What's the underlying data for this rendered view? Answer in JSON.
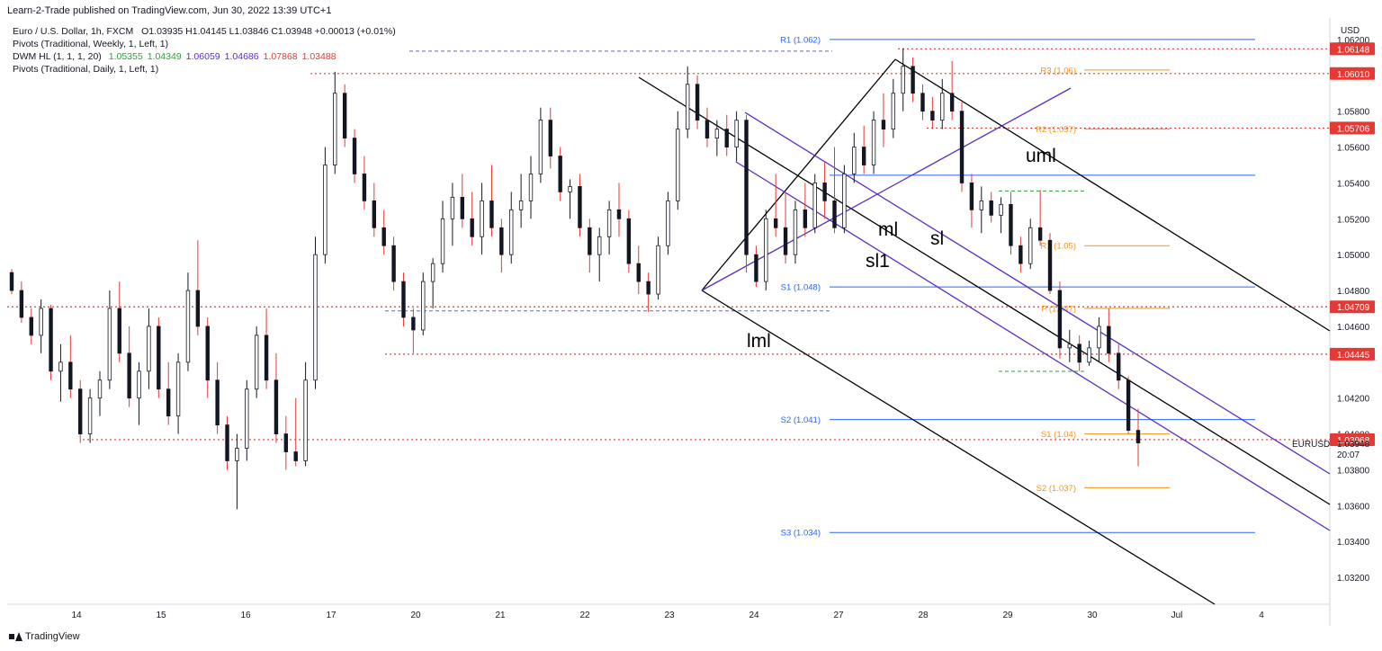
{
  "header": {
    "published": "Learn-2-Trade published on TradingView.com, Jun 30, 2022 13:39 UTC+1",
    "symbol": "Euro / U.S. Dollar, 1h, FXCM",
    "ohlc": "O1.03935 H1.04145 L1.03846 C1.03948 +0.00013 (+0.01%)",
    "indicator1": "Pivots (Traditional, Weekly, 1, Left, 1)",
    "indicator2_name": "DWM HL (1, 1, 1, 20)",
    "indicator2_values": [
      {
        "text": "1.05355",
        "color": "#2e9e3a"
      },
      {
        "text": "1.04349",
        "color": "#2e9e3a"
      },
      {
        "text": "1.06059",
        "color": "#5b2bc4"
      },
      {
        "text": "1.04686",
        "color": "#5b2bc4"
      },
      {
        "text": "1.07868",
        "color": "#e53935"
      },
      {
        "text": "1.03488",
        "color": "#e53935"
      }
    ],
    "indicator3": "Pivots (Traditional, Daily, 1, Left, 1)",
    "currency": "USD"
  },
  "brand": "TradingView",
  "chart_data": {
    "type": "candlestick",
    "symbol": "EURUSD",
    "currency": "USD",
    "ylim": [
      1.0305,
      1.0632
    ],
    "y_ticks": [
      "1.06200",
      "1.05800",
      "1.05600",
      "1.05400",
      "1.05200",
      "1.05000",
      "1.04800",
      "1.04600",
      "1.04200",
      "1.04000",
      "1.03800",
      "1.03600",
      "1.03400",
      "1.03200"
    ],
    "x_labels": [
      "14",
      "15",
      "16",
      "17",
      "20",
      "21",
      "22",
      "23",
      "24",
      "27",
      "28",
      "29",
      "30",
      "Jul",
      "4"
    ],
    "price_badges": [
      {
        "label": "1.06148",
        "value": 1.06148
      },
      {
        "label": "1.06010",
        "value": 1.0601
      },
      {
        "label": "1.05706",
        "value": 1.05706
      },
      {
        "label": "1.04709",
        "value": 1.04709
      },
      {
        "label": "1.04445",
        "value": 1.04445
      },
      {
        "label": "1.03968",
        "value": 1.03968
      }
    ],
    "current_price": {
      "symbol": "EURUSD",
      "value": "1.03948",
      "countdown": "20:07"
    },
    "weekly_pivots": [
      {
        "label": "R1 (1.062)",
        "value": 1.062
      },
      {
        "label": "S1 (1.048)",
        "value": 1.0482
      },
      {
        "label": "S2 (1.041)",
        "value": 1.0408
      },
      {
        "label": "S3 (1.034)",
        "value": 1.0345
      }
    ],
    "daily_pivots": [
      {
        "label": "R3 (1.06)",
        "value": 1.0603
      },
      {
        "label": "R2 (1.057)",
        "value": 1.057
      },
      {
        "label": "R1 (1.05)",
        "value": 1.0505
      },
      {
        "label": "P (1.047)",
        "value": 1.047
      },
      {
        "label": "S1 (1.04)",
        "value": 1.04
      },
      {
        "label": "S2 (1.037)",
        "value": 1.037
      }
    ],
    "pitchfork_labels": [
      "uml",
      "ml",
      "sl",
      "sl1",
      "lml"
    ],
    "colors": {
      "up": "#131722",
      "down": "#131722",
      "wick_up": "#131722",
      "wick_down": "#e53935",
      "weekly": "#2962ff",
      "daily": "#f7931a",
      "levels": "#e53935",
      "fork": "#000000",
      "sliding": "#5b2bc4"
    },
    "candles": [
      {
        "o": 1.049,
        "h": 1.0492,
        "l": 1.0478,
        "c": 1.048
      },
      {
        "o": 1.048,
        "h": 1.0485,
        "l": 1.0462,
        "c": 1.0465
      },
      {
        "o": 1.0465,
        "h": 1.047,
        "l": 1.045,
        "c": 1.0455
      },
      {
        "o": 1.0455,
        "h": 1.0475,
        "l": 1.0445,
        "c": 1.047
      },
      {
        "o": 1.047,
        "h": 1.0472,
        "l": 1.043,
        "c": 1.0435
      },
      {
        "o": 1.0435,
        "h": 1.045,
        "l": 1.0418,
        "c": 1.044
      },
      {
        "o": 1.044,
        "h": 1.0455,
        "l": 1.042,
        "c": 1.0425
      },
      {
        "o": 1.0425,
        "h": 1.043,
        "l": 1.0395,
        "c": 1.04
      },
      {
        "o": 1.04,
        "h": 1.0425,
        "l": 1.0395,
        "c": 1.042
      },
      {
        "o": 1.042,
        "h": 1.0435,
        "l": 1.041,
        "c": 1.043
      },
      {
        "o": 1.043,
        "h": 1.048,
        "l": 1.0425,
        "c": 1.047
      },
      {
        "o": 1.047,
        "h": 1.0485,
        "l": 1.044,
        "c": 1.0445
      },
      {
        "o": 1.0445,
        "h": 1.046,
        "l": 1.0415,
        "c": 1.042
      },
      {
        "o": 1.042,
        "h": 1.044,
        "l": 1.0405,
        "c": 1.0435
      },
      {
        "o": 1.0435,
        "h": 1.047,
        "l": 1.0425,
        "c": 1.046
      },
      {
        "o": 1.046,
        "h": 1.0465,
        "l": 1.042,
        "c": 1.0425
      },
      {
        "o": 1.0425,
        "h": 1.044,
        "l": 1.0405,
        "c": 1.041
      },
      {
        "o": 1.041,
        "h": 1.0445,
        "l": 1.04,
        "c": 1.044
      },
      {
        "o": 1.044,
        "h": 1.049,
        "l": 1.0435,
        "c": 1.048
      },
      {
        "o": 1.048,
        "h": 1.0508,
        "l": 1.0455,
        "c": 1.046
      },
      {
        "o": 1.046,
        "h": 1.0465,
        "l": 1.042,
        "c": 1.043
      },
      {
        "o": 1.043,
        "h": 1.044,
        "l": 1.04,
        "c": 1.0405
      },
      {
        "o": 1.0405,
        "h": 1.041,
        "l": 1.038,
        "c": 1.0385
      },
      {
        "o": 1.0385,
        "h": 1.04,
        "l": 1.0358,
        "c": 1.0392
      },
      {
        "o": 1.0392,
        "h": 1.043,
        "l": 1.0385,
        "c": 1.0425
      },
      {
        "o": 1.0425,
        "h": 1.046,
        "l": 1.042,
        "c": 1.0455
      },
      {
        "o": 1.0455,
        "h": 1.047,
        "l": 1.0425,
        "c": 1.043
      },
      {
        "o": 1.043,
        "h": 1.0445,
        "l": 1.0395,
        "c": 1.04
      },
      {
        "o": 1.04,
        "h": 1.041,
        "l": 1.038,
        "c": 1.039
      },
      {
        "o": 1.039,
        "h": 1.042,
        "l": 1.0382,
        "c": 1.0385
      },
      {
        "o": 1.0385,
        "h": 1.044,
        "l": 1.0382,
        "c": 1.043
      },
      {
        "o": 1.043,
        "h": 1.051,
        "l": 1.0425,
        "c": 1.05
      },
      {
        "o": 1.05,
        "h": 1.056,
        "l": 1.0495,
        "c": 1.055
      },
      {
        "o": 1.055,
        "h": 1.0602,
        "l": 1.0545,
        "c": 1.059
      },
      {
        "o": 1.059,
        "h": 1.0595,
        "l": 1.056,
        "c": 1.0565
      },
      {
        "o": 1.0565,
        "h": 1.057,
        "l": 1.054,
        "c": 1.0545
      },
      {
        "o": 1.0545,
        "h": 1.0555,
        "l": 1.0525,
        "c": 1.053
      },
      {
        "o": 1.053,
        "h": 1.054,
        "l": 1.051,
        "c": 1.0515
      },
      {
        "o": 1.0515,
        "h": 1.0525,
        "l": 1.05,
        "c": 1.0505
      },
      {
        "o": 1.0505,
        "h": 1.051,
        "l": 1.048,
        "c": 1.0485
      },
      {
        "o": 1.0485,
        "h": 1.049,
        "l": 1.046,
        "c": 1.0465
      },
      {
        "o": 1.0465,
        "h": 1.047,
        "l": 1.0445,
        "c": 1.0458
      },
      {
        "o": 1.0458,
        "h": 1.049,
        "l": 1.0455,
        "c": 1.0485
      },
      {
        "o": 1.0485,
        "h": 1.0498,
        "l": 1.047,
        "c": 1.0495
      },
      {
        "o": 1.0495,
        "h": 1.053,
        "l": 1.049,
        "c": 1.052
      },
      {
        "o": 1.052,
        "h": 1.054,
        "l": 1.0505,
        "c": 1.0532
      },
      {
        "o": 1.0532,
        "h": 1.0545,
        "l": 1.0515,
        "c": 1.052
      },
      {
        "o": 1.052,
        "h": 1.0535,
        "l": 1.0505,
        "c": 1.051
      },
      {
        "o": 1.051,
        "h": 1.054,
        "l": 1.05,
        "c": 1.053
      },
      {
        "o": 1.053,
        "h": 1.055,
        "l": 1.051,
        "c": 1.0515
      },
      {
        "o": 1.0515,
        "h": 1.052,
        "l": 1.049,
        "c": 1.05
      },
      {
        "o": 1.05,
        "h": 1.0535,
        "l": 1.0495,
        "c": 1.0525
      },
      {
        "o": 1.0525,
        "h": 1.0545,
        "l": 1.0515,
        "c": 1.053
      },
      {
        "o": 1.053,
        "h": 1.0555,
        "l": 1.052,
        "c": 1.0545
      },
      {
        "o": 1.0545,
        "h": 1.0582,
        "l": 1.054,
        "c": 1.0575
      },
      {
        "o": 1.0575,
        "h": 1.0582,
        "l": 1.0548,
        "c": 1.0555
      },
      {
        "o": 1.0555,
        "h": 1.056,
        "l": 1.053,
        "c": 1.0535
      },
      {
        "o": 1.0535,
        "h": 1.0542,
        "l": 1.052,
        "c": 1.0538
      },
      {
        "o": 1.0538,
        "h": 1.0545,
        "l": 1.051,
        "c": 1.0515
      },
      {
        "o": 1.0515,
        "h": 1.052,
        "l": 1.049,
        "c": 1.05
      },
      {
        "o": 1.05,
        "h": 1.0515,
        "l": 1.0485,
        "c": 1.051
      },
      {
        "o": 1.051,
        "h": 1.053,
        "l": 1.05,
        "c": 1.0525
      },
      {
        "o": 1.0525,
        "h": 1.054,
        "l": 1.051,
        "c": 1.052
      },
      {
        "o": 1.052,
        "h": 1.0525,
        "l": 1.049,
        "c": 1.0495
      },
      {
        "o": 1.0495,
        "h": 1.0505,
        "l": 1.0478,
        "c": 1.0485
      },
      {
        "o": 1.0485,
        "h": 1.049,
        "l": 1.0468,
        "c": 1.0478
      },
      {
        "o": 1.0478,
        "h": 1.051,
        "l": 1.0475,
        "c": 1.0505
      },
      {
        "o": 1.0505,
        "h": 1.0535,
        "l": 1.05,
        "c": 1.053
      },
      {
        "o": 1.053,
        "h": 1.058,
        "l": 1.0525,
        "c": 1.057
      },
      {
        "o": 1.057,
        "h": 1.0605,
        "l": 1.0565,
        "c": 1.0595
      },
      {
        "o": 1.0595,
        "h": 1.06,
        "l": 1.057,
        "c": 1.0575
      },
      {
        "o": 1.0575,
        "h": 1.0582,
        "l": 1.056,
        "c": 1.0565
      },
      {
        "o": 1.0565,
        "h": 1.0575,
        "l": 1.0555,
        "c": 1.057
      },
      {
        "o": 1.057,
        "h": 1.0578,
        "l": 1.0555,
        "c": 1.056
      },
      {
        "o": 1.056,
        "h": 1.058,
        "l": 1.0552,
        "c": 1.0575
      },
      {
        "o": 1.0575,
        "h": 1.0578,
        "l": 1.049,
        "c": 1.05
      },
      {
        "o": 1.05,
        "h": 1.0505,
        "l": 1.0482,
        "c": 1.0485
      },
      {
        "o": 1.0485,
        "h": 1.0525,
        "l": 1.048,
        "c": 1.052
      },
      {
        "o": 1.052,
        "h": 1.0545,
        "l": 1.051,
        "c": 1.0515
      },
      {
        "o": 1.0515,
        "h": 1.0535,
        "l": 1.0495,
        "c": 1.05
      },
      {
        "o": 1.05,
        "h": 1.053,
        "l": 1.0495,
        "c": 1.0525
      },
      {
        "o": 1.0525,
        "h": 1.054,
        "l": 1.051,
        "c": 1.0515
      },
      {
        "o": 1.0515,
        "h": 1.0545,
        "l": 1.0512,
        "c": 1.054
      },
      {
        "o": 1.054,
        "h": 1.0552,
        "l": 1.052,
        "c": 1.053
      },
      {
        "o": 1.053,
        "h": 1.056,
        "l": 1.0512,
        "c": 1.0515
      },
      {
        "o": 1.0515,
        "h": 1.055,
        "l": 1.0512,
        "c": 1.0545
      },
      {
        "o": 1.0545,
        "h": 1.0568,
        "l": 1.054,
        "c": 1.056
      },
      {
        "o": 1.056,
        "h": 1.0572,
        "l": 1.0545,
        "c": 1.055
      },
      {
        "o": 1.055,
        "h": 1.058,
        "l": 1.0545,
        "c": 1.0575
      },
      {
        "o": 1.0575,
        "h": 1.059,
        "l": 1.056,
        "c": 1.057
      },
      {
        "o": 1.057,
        "h": 1.0598,
        "l": 1.0565,
        "c": 1.059
      },
      {
        "o": 1.059,
        "h": 1.0615,
        "l": 1.058,
        "c": 1.0605
      },
      {
        "o": 1.0605,
        "h": 1.061,
        "l": 1.0585,
        "c": 1.059
      },
      {
        "o": 1.059,
        "h": 1.0595,
        "l": 1.0575,
        "c": 1.058
      },
      {
        "o": 1.058,
        "h": 1.0588,
        "l": 1.057,
        "c": 1.0575
      },
      {
        "o": 1.0575,
        "h": 1.0598,
        "l": 1.057,
        "c": 1.059
      },
      {
        "o": 1.059,
        "h": 1.0608,
        "l": 1.0575,
        "c": 1.058
      },
      {
        "o": 1.058,
        "h": 1.0585,
        "l": 1.0535,
        "c": 1.054
      },
      {
        "o": 1.054,
        "h": 1.0545,
        "l": 1.0515,
        "c": 1.0525
      },
      {
        "o": 1.0525,
        "h": 1.0538,
        "l": 1.0512,
        "c": 1.053
      },
      {
        "o": 1.053,
        "h": 1.0535,
        "l": 1.0518,
        "c": 1.0522
      },
      {
        "o": 1.0522,
        "h": 1.0532,
        "l": 1.0512,
        "c": 1.0528
      },
      {
        "o": 1.0528,
        "h": 1.0535,
        "l": 1.05,
        "c": 1.0505
      },
      {
        "o": 1.0505,
        "h": 1.051,
        "l": 1.049,
        "c": 1.0495
      },
      {
        "o": 1.0495,
        "h": 1.052,
        "l": 1.0492,
        "c": 1.0515
      },
      {
        "o": 1.0515,
        "h": 1.0536,
        "l": 1.0505,
        "c": 1.0508
      },
      {
        "o": 1.0508,
        "h": 1.0512,
        "l": 1.0478,
        "c": 1.048
      },
      {
        "o": 1.048,
        "h": 1.0485,
        "l": 1.0442,
        "c": 1.0448
      },
      {
        "o": 1.0448,
        "h": 1.0458,
        "l": 1.044,
        "c": 1.045
      },
      {
        "o": 1.045,
        "h": 1.0455,
        "l": 1.0435,
        "c": 1.044
      },
      {
        "o": 1.044,
        "h": 1.0452,
        "l": 1.0438,
        "c": 1.0448
      },
      {
        "o": 1.0448,
        "h": 1.0465,
        "l": 1.044,
        "c": 1.046
      },
      {
        "o": 1.046,
        "h": 1.047,
        "l": 1.044,
        "c": 1.0445
      },
      {
        "o": 1.0445,
        "h": 1.045,
        "l": 1.0425,
        "c": 1.043
      },
      {
        "o": 1.043,
        "h": 1.0432,
        "l": 1.04,
        "c": 1.0402
      },
      {
        "o": 1.0402,
        "h": 1.0414,
        "l": 1.0382,
        "c": 1.0395
      }
    ]
  }
}
